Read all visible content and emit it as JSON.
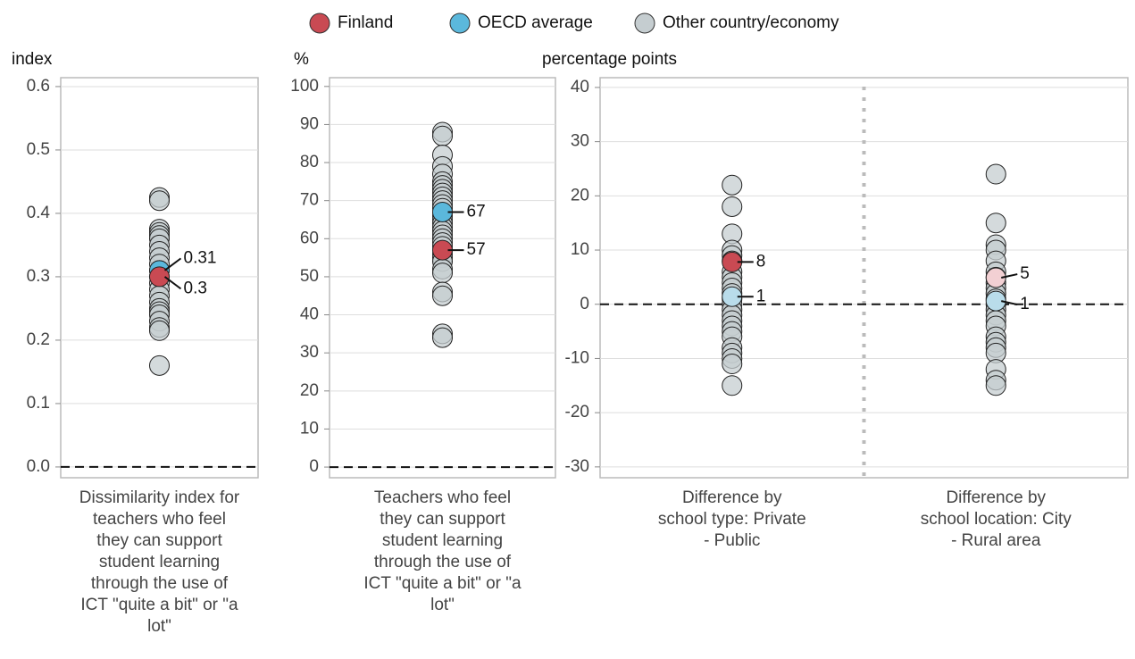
{
  "chart_data": [
    {
      "type": "strip",
      "ylabel": "index",
      "categories": [
        "Dissimilarity index for teachers who feel they can support student learning through the use of ICT \"quite a bit\" or \"a lot\""
      ],
      "ylim": [
        -0.017,
        0.614
      ],
      "yticks": [
        {
          "value": 0,
          "label": "0.0"
        },
        0.1,
        0.2,
        0.3,
        0.4,
        0.5,
        0.6
      ],
      "grid": true,
      "series": [
        {
          "name": "Other country/economy",
          "color": "#c5cdd0",
          "values": [
            [
              0.425,
              0.42,
              0.375,
              0.37,
              0.365,
              0.36,
              0.35,
              0.34,
              0.33,
              0.32,
              0.31,
              0.3,
              0.29,
              0.28,
              0.27,
              0.26,
              0.25,
              0.245,
              0.24,
              0.23,
              0.22,
              0.215,
              0.16
            ]
          ]
        },
        {
          "name": "OECD average",
          "color": "#5bb8dc",
          "values": [
            0.31
          ]
        },
        {
          "name": "Finland",
          "color": "#c94a53",
          "values": [
            0.3
          ]
        }
      ]
    },
    {
      "type": "strip",
      "ylabel": "%",
      "categories": [
        "Teachers who feel they can support student learning through the use of ICT \"quite a bit\" or \"a lot\""
      ],
      "ylim": [
        -2.8,
        102.3
      ],
      "yticks": [
        0,
        10,
        20,
        30,
        40,
        50,
        60,
        70,
        80,
        90,
        100
      ],
      "grid": true,
      "series": [
        {
          "name": "Other country/economy",
          "color": "#c5cdd0",
          "values": [
            [
              88,
              87,
              82,
              79,
              77,
              75,
              74,
              73,
              72,
              71,
              70,
              69,
              68,
              66,
              65,
              64,
              63,
              62,
              61,
              60,
              59,
              58,
              56,
              55,
              54,
              52,
              51,
              46,
              45,
              35,
              34
            ]
          ]
        },
        {
          "name": "OECD average",
          "color": "#5bb8dc",
          "values": [
            67
          ]
        },
        {
          "name": "Finland",
          "color": "#c94a53",
          "values": [
            57
          ]
        }
      ]
    },
    {
      "type": "strip",
      "ylabel": "percentage points",
      "categories": [
        "Difference by school type: Private - Public",
        "Difference by school location: City - Rural area"
      ],
      "ylim": [
        -32,
        41.8
      ],
      "yticks": [
        -30,
        -20,
        -10,
        0,
        10,
        20,
        30,
        40
      ],
      "grid": true,
      "series": [
        {
          "name": "Other country/economy",
          "color": "#c5cdd0",
          "values": [
            [
              22,
              18,
              13,
              10,
              9,
              8,
              6,
              5,
              4,
              3,
              2,
              1,
              0,
              -1,
              -2,
              -3,
              -4,
              -5,
              -6,
              -8,
              -9,
              -10,
              -11,
              -15
            ],
            [
              24,
              15,
              11,
              10,
              8,
              6,
              5,
              4,
              3,
              2,
              1,
              0,
              -1,
              -2,
              -3,
              -4,
              -6,
              -7,
              -8,
              -9,
              -12,
              -14,
              -15
            ]
          ]
        },
        {
          "name": "OECD average",
          "color": "#b9dcea",
          "values": [
            1.4,
            0.6
          ],
          "value_labels": [
            "1",
            "1"
          ]
        },
        {
          "name": "Finland",
          "colors": [
            "#c94a53",
            "#f2d0d3"
          ],
          "values": [
            7.8,
            4.9
          ],
          "value_labels": [
            "8",
            "5"
          ]
        }
      ]
    }
  ]
}
